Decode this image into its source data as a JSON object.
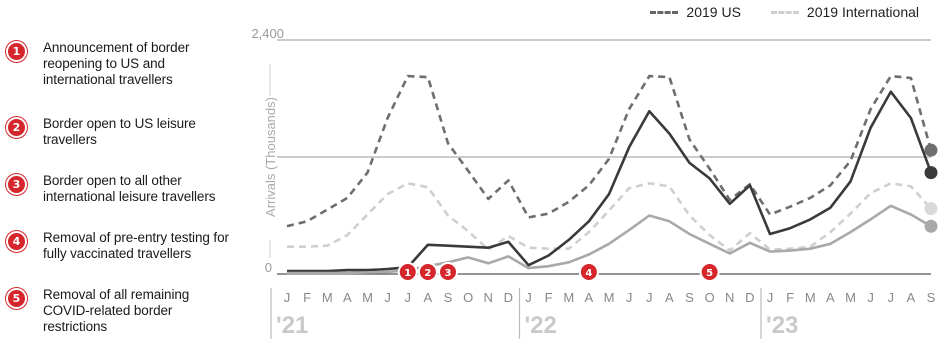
{
  "legend": [
    {
      "label": "2019 US",
      "color": "#6e6e6e"
    },
    {
      "label": "2019 International",
      "color": "#cfcfcf"
    }
  ],
  "annotations": [
    {
      "num": "1",
      "text": "Announcement of border reopening to US and international travellers"
    },
    {
      "num": "2",
      "text": "Border open to US leisure travellers"
    },
    {
      "num": "3",
      "text": "Border open to all other international leisure travellers"
    },
    {
      "num": "4",
      "text": "Removal of pre-entry testing for fully vaccinated travellers"
    },
    {
      "num": "5",
      "text": "Removal of all remaining COVID-related border restrictions"
    }
  ],
  "colors": {
    "accent": "#d4262b",
    "us_actual": "#3a3a3a",
    "intl_actual": "#a9a9a9"
  },
  "chart_data": {
    "type": "line",
    "ylabel": "Arrivals (Thousands)",
    "ylim": [
      0,
      2400
    ],
    "yticks": [
      "0",
      "2,400"
    ],
    "grid": true,
    "legend_position": "top-right",
    "x": [
      "J",
      "F",
      "M",
      "A",
      "M",
      "J",
      "J",
      "A",
      "S",
      "O",
      "N",
      "D",
      "J",
      "F",
      "M",
      "A",
      "M",
      "J",
      "J",
      "A",
      "S",
      "O",
      "N",
      "D",
      "J",
      "F",
      "M",
      "A",
      "M",
      "J",
      "J",
      "A",
      "S"
    ],
    "years": [
      {
        "label": "'21",
        "start_index": 0
      },
      {
        "label": "'22",
        "start_index": 12
      },
      {
        "label": "'23",
        "start_index": 24
      }
    ],
    "series": [
      {
        "name": "2019 US",
        "style": "dashed",
        "color": "#6e6e6e",
        "values": [
          490,
          540,
          660,
          780,
          1040,
          1600,
          2030,
          2020,
          1340,
          1060,
          770,
          960,
          580,
          620,
          740,
          910,
          1180,
          1690,
          2030,
          2020,
          1380,
          1080,
          760,
          920,
          610,
          690,
          780,
          910,
          1160,
          1690,
          2030,
          2010,
          1270
        ]
      },
      {
        "name": "2019 International",
        "style": "dashed",
        "color": "#cfcfcf",
        "values": [
          280,
          280,
          290,
          400,
          610,
          820,
          930,
          890,
          600,
          440,
          250,
          390,
          270,
          260,
          260,
          430,
          650,
          880,
          930,
          900,
          600,
          400,
          240,
          420,
          250,
          260,
          280,
          430,
          620,
          830,
          930,
          900,
          670
        ]
      },
      {
        "values": [
          30,
          30,
          30,
          40,
          40,
          50,
          70,
          300,
          290,
          280,
          270,
          330,
          90,
          190,
          350,
          540,
          820,
          1300,
          1670,
          1440,
          1140,
          980,
          720,
          910,
          410,
          470,
          560,
          680,
          950,
          1500,
          1870,
          1600,
          1040
        ],
        "color": "#3a3a3a",
        "style": "solid"
      },
      {
        "values": [
          10,
          10,
          10,
          10,
          15,
          20,
          40,
          80,
          120,
          170,
          110,
          180,
          60,
          80,
          120,
          200,
          310,
          450,
          600,
          540,
          410,
          310,
          210,
          320,
          230,
          240,
          260,
          310,
          430,
          560,
          700,
          610,
          490
        ],
        "color": "#a9a9a9",
        "style": "solid"
      }
    ],
    "markers": [
      {
        "num": "1",
        "x_index": 6
      },
      {
        "num": "2",
        "x_index": 7
      },
      {
        "num": "3",
        "x_index": 8
      },
      {
        "num": "4",
        "x_index": 15
      },
      {
        "num": "5",
        "x_index": 21
      }
    ]
  }
}
